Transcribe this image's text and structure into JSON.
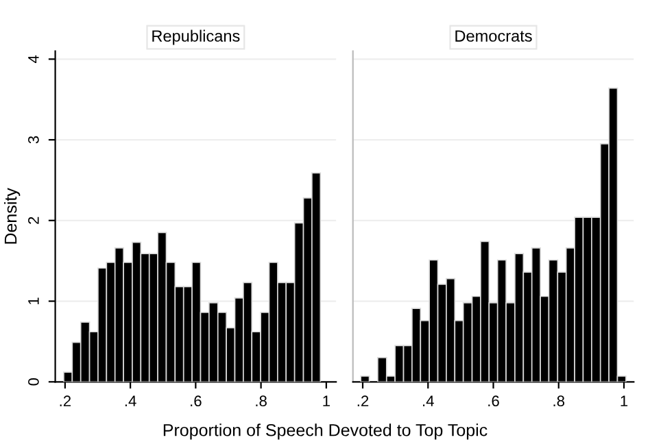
{
  "chart_data": [
    {
      "type": "histogram",
      "title": "Republicans",
      "xlabel": "Proportion of Speech Devoted to Top Topic",
      "ylabel": "Density",
      "color": "#000000",
      "bins": [
        0.196,
        0.222,
        0.248,
        0.275,
        0.301,
        0.327,
        0.353,
        0.379,
        0.406,
        0.432,
        0.458,
        0.484,
        0.51,
        0.537,
        0.563,
        0.589,
        0.615,
        0.641,
        0.668,
        0.694,
        0.72,
        0.746,
        0.772,
        0.799,
        0.825,
        0.851,
        0.877,
        0.903,
        0.93,
        0.956,
        0.982
      ],
      "values": [
        0.12,
        0.49,
        0.74,
        0.62,
        1.41,
        1.48,
        1.66,
        1.48,
        1.73,
        1.59,
        1.59,
        1.85,
        1.48,
        1.18,
        1.18,
        1.48,
        0.86,
        0.98,
        0.86,
        0.67,
        1.04,
        1.23,
        0.62,
        0.86,
        1.48,
        1.23,
        1.23,
        1.97,
        2.28,
        2.59
      ],
      "xlim": [
        0.17,
        1.03
      ],
      "xticks": [
        {
          "value": 0.2,
          "label": ".2"
        },
        {
          "value": 0.4,
          "label": ".4"
        },
        {
          "value": 0.6,
          "label": ".6"
        },
        {
          "value": 0.8,
          "label": ".8"
        },
        1
      ],
      "ylim": [
        0,
        4.1
      ],
      "yticks": [
        0,
        1,
        2,
        3,
        4
      ],
      "grid": "y"
    },
    {
      "type": "histogram",
      "title": "Democrats",
      "color": "#000000",
      "bins": [
        0.194,
        0.22,
        0.246,
        0.273,
        0.299,
        0.325,
        0.351,
        0.377,
        0.404,
        0.43,
        0.456,
        0.482,
        0.508,
        0.535,
        0.561,
        0.587,
        0.613,
        0.639,
        0.666,
        0.692,
        0.718,
        0.744,
        0.77,
        0.797,
        0.823,
        0.849,
        0.875,
        0.901,
        0.928,
        0.954,
        0.98,
        1.006
      ],
      "values": [
        0.07,
        0,
        0.3,
        0.07,
        0.45,
        0.45,
        0.91,
        0.76,
        1.51,
        1.21,
        1.28,
        0.76,
        0.98,
        1.06,
        1.74,
        0.98,
        1.51,
        0.98,
        1.59,
        1.36,
        1.66,
        1.06,
        1.51,
        1.36,
        1.66,
        2.04,
        2.04,
        2.04,
        2.95,
        3.64,
        0.07
      ],
      "xlim": [
        0.17,
        1.03
      ],
      "xticks": [
        {
          "value": 0.2,
          "label": ".2"
        },
        {
          "value": 0.4,
          "label": ".4"
        },
        {
          "value": 0.6,
          "label": ".6"
        },
        {
          "value": 0.8,
          "label": ".8"
        },
        1
      ],
      "ylim": [
        0,
        4.1
      ],
      "yticks": [
        0,
        1,
        2,
        3,
        4
      ],
      "grid": "y",
      "tick_labels": "x"
    }
  ]
}
